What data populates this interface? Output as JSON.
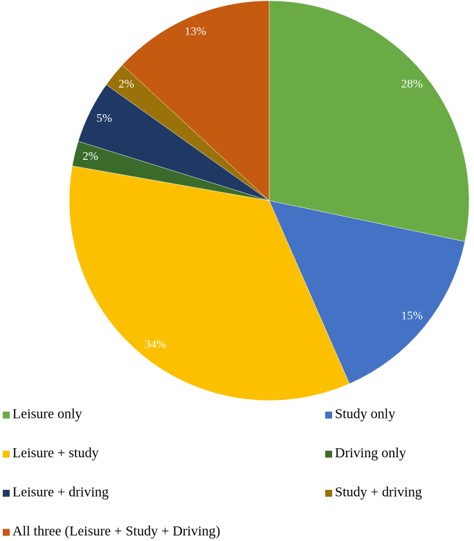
{
  "chart_data": {
    "type": "pie",
    "categories": [
      "Leisure only",
      "Study only",
      "Leisure + study",
      "Driving only",
      "Leisure + driving",
      "Study + driving",
      "All three (Leisure + Study + Driving)"
    ],
    "values": [
      28,
      15,
      34,
      2,
      5,
      2,
      13
    ],
    "value_labels": [
      "28%",
      "15%",
      "34%",
      "2%",
      "5%",
      "2%",
      "13%"
    ],
    "colors": [
      "#6aab45",
      "#4472c4",
      "#fcc000",
      "#3b6b2a",
      "#203864",
      "#9a7209",
      "#c55a11"
    ]
  }
}
